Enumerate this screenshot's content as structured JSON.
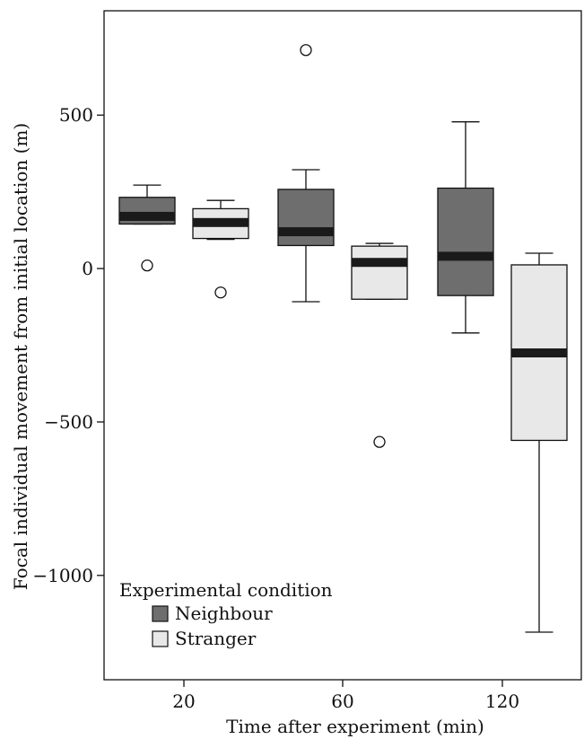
{
  "chart_data": {
    "type": "boxplot",
    "xlabel": "Time after experiment (min)",
    "ylabel": "Focal individual movement from initial location (m)",
    "categories": [
      "20",
      "60",
      "120"
    ],
    "ylim": [
      -1340,
      840
    ],
    "yticks": [
      500,
      0,
      -500,
      -1000
    ],
    "ytick_labels": [
      "500",
      "0",
      "−500",
      "−1000"
    ],
    "grid": false,
    "legend": {
      "title": "Experimental condition",
      "placement": "bottom-left",
      "entries": [
        "Neighbour",
        "Stranger"
      ]
    },
    "colors": {
      "Neighbour": "#6e6e6e",
      "Stranger": "#e8e8e8",
      "median": "#1a1a1a"
    },
    "series": [
      {
        "name": "Neighbour",
        "boxes": [
          {
            "category": "20",
            "whisker_low": 145,
            "q1": 145,
            "median": 170,
            "q3": 232,
            "whisker_high": 272,
            "outliers": [
              10
            ]
          },
          {
            "category": "60",
            "whisker_low": -108,
            "q1": 75,
            "median": 120,
            "q3": 258,
            "whisker_high": 322,
            "outliers": [
              712
            ]
          },
          {
            "category": "120",
            "whisker_low": -210,
            "q1": -88,
            "median": 40,
            "q3": 262,
            "whisker_high": 478,
            "outliers": []
          }
        ]
      },
      {
        "name": "Stranger",
        "boxes": [
          {
            "category": "20",
            "whisker_low": 95,
            "q1": 98,
            "median": 150,
            "q3": 195,
            "whisker_high": 222,
            "outliers": [
              -78
            ]
          },
          {
            "category": "60",
            "whisker_low": -100,
            "q1": -100,
            "median": 20,
            "q3": 73,
            "whisker_high": 82,
            "outliers": [
              -565
            ]
          },
          {
            "category": "120",
            "whisker_low": -1185,
            "q1": -560,
            "median": -275,
            "q3": 12,
            "whisker_high": 50,
            "outliers": []
          }
        ]
      }
    ]
  }
}
